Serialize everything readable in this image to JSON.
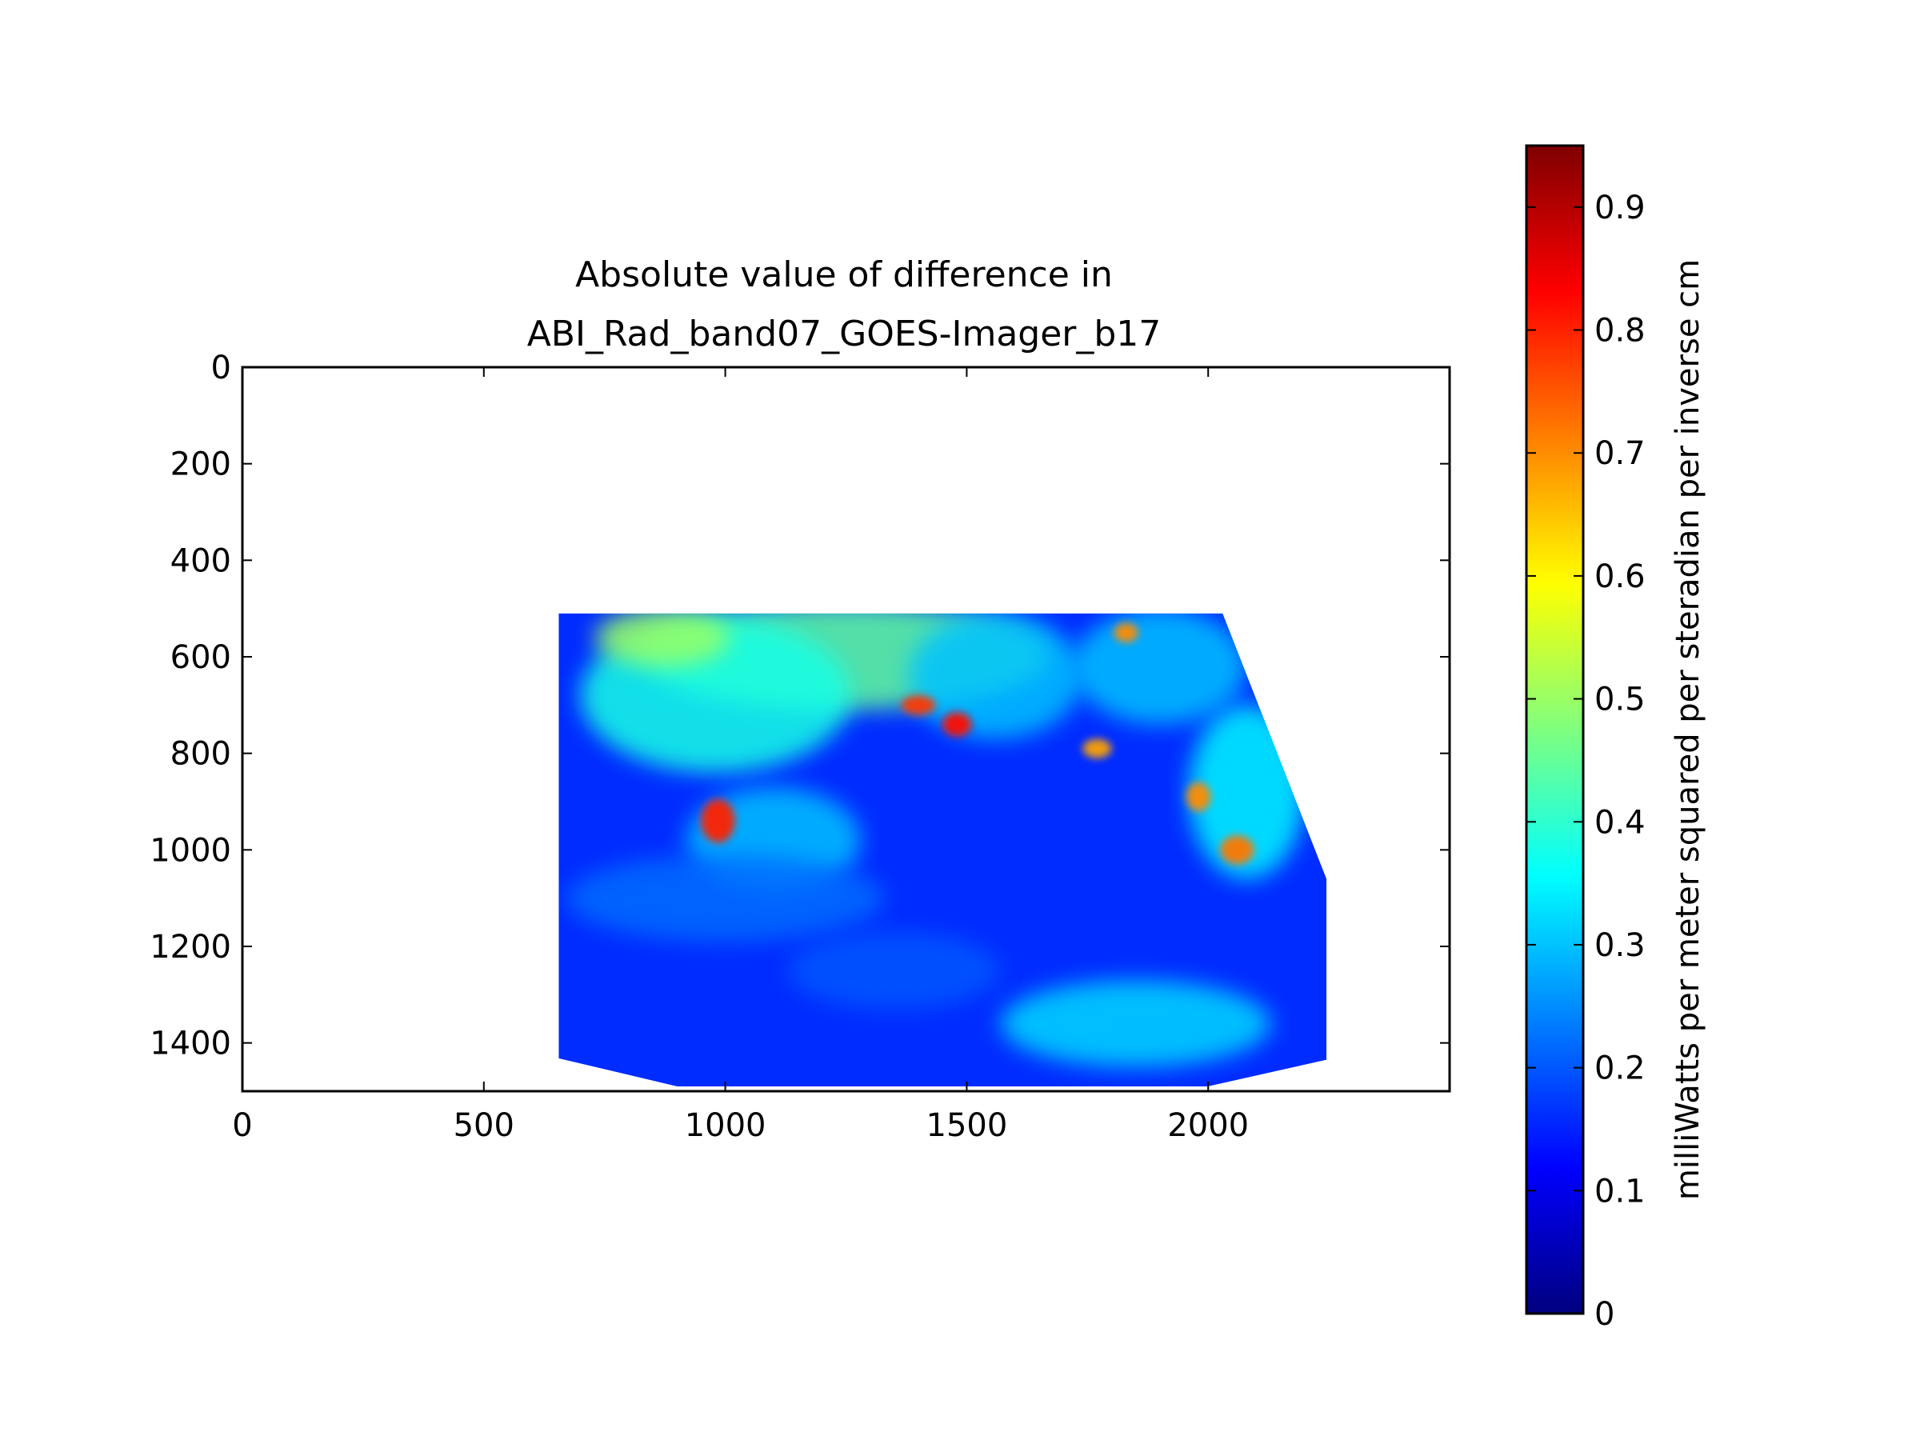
{
  "chart_data": {
    "type": "heatmap",
    "title_lines": [
      "Absolute value of difference in",
      "ABI_Rad_band07_GOES-Imager_b17"
    ],
    "xlabel": "",
    "ylabel": "",
    "xlim": [
      0,
      2500
    ],
    "ylim": [
      1500,
      0
    ],
    "y_inverted": true,
    "x_ticks": [
      0,
      500,
      1000,
      1500,
      2000
    ],
    "y_ticks": [
      0,
      200,
      400,
      600,
      800,
      1000,
      1200,
      1400
    ],
    "data_extent_outline": [
      [
        655,
        510
      ],
      [
        2030,
        510
      ],
      [
        2245,
        1060
      ],
      [
        2245,
        1435
      ],
      [
        2000,
        1490
      ],
      [
        900,
        1490
      ],
      [
        655,
        1432
      ]
    ],
    "value_range": [
      0,
      0.95
    ],
    "colormap": "jet",
    "colormap_stops": [
      "#00007f",
      "#0000ff",
      "#007fff",
      "#00ffff",
      "#7fff7f",
      "#ffff00",
      "#ff7f00",
      "#ff0000",
      "#7f0000"
    ],
    "colorbar": {
      "label": "milliWatts per meter squared per steradian per inverse cm",
      "vmin": 0,
      "vmax": 0.95,
      "ticks": [
        0,
        0.1,
        0.2,
        0.3,
        0.4,
        0.5,
        0.6,
        0.7,
        0.8,
        0.9
      ],
      "tick_labels": [
        "0",
        "0.1",
        "0.2",
        "0.3",
        "0.4",
        "0.5",
        "0.6",
        "0.7",
        "0.8",
        "0.9"
      ]
    },
    "features": [
      {
        "x": 1250,
        "y": 600,
        "rx": 420,
        "ry": 110,
        "value": 0.45
      },
      {
        "x": 980,
        "y": 680,
        "rx": 280,
        "ry": 160,
        "value": 0.38
      },
      {
        "x": 870,
        "y": 560,
        "rx": 140,
        "ry": 60,
        "value": 0.5
      },
      {
        "x": 1560,
        "y": 640,
        "rx": 180,
        "ry": 130,
        "value": 0.3
      },
      {
        "x": 1900,
        "y": 620,
        "rx": 180,
        "ry": 120,
        "value": 0.3
      },
      {
        "x": 2080,
        "y": 880,
        "rx": 120,
        "ry": 180,
        "value": 0.35
      },
      {
        "x": 1100,
        "y": 980,
        "rx": 180,
        "ry": 110,
        "value": 0.3
      },
      {
        "x": 1000,
        "y": 1100,
        "rx": 330,
        "ry": 90,
        "value": 0.22
      },
      {
        "x": 1850,
        "y": 1360,
        "rx": 280,
        "ry": 90,
        "value": 0.32
      },
      {
        "x": 1350,
        "y": 1250,
        "rx": 220,
        "ry": 80,
        "value": 0.2
      },
      {
        "x": 1400,
        "y": 700,
        "rx": 35,
        "ry": 20,
        "value": 0.78
      },
      {
        "x": 1480,
        "y": 740,
        "rx": 30,
        "ry": 25,
        "value": 0.82
      },
      {
        "x": 985,
        "y": 940,
        "rx": 35,
        "ry": 45,
        "value": 0.8
      },
      {
        "x": 2060,
        "y": 1000,
        "rx": 35,
        "ry": 30,
        "value": 0.72
      },
      {
        "x": 1980,
        "y": 890,
        "rx": 25,
        "ry": 30,
        "value": 0.7
      },
      {
        "x": 1770,
        "y": 790,
        "rx": 30,
        "ry": 20,
        "value": 0.68
      },
      {
        "x": 1830,
        "y": 550,
        "rx": 25,
        "ry": 20,
        "value": 0.7
      }
    ]
  }
}
